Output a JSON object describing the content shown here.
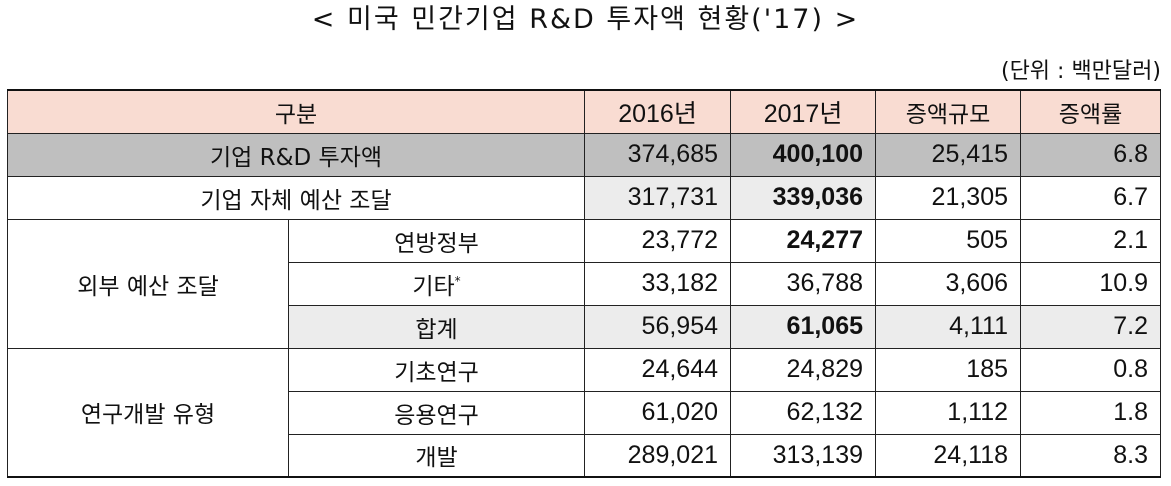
{
  "title": "< 미국 민간기업 R&D 투자액 현황('17) >",
  "unit": "(단위 : 백만달러)",
  "headers": [
    "구분",
    "2016년",
    "2017년",
    "증액규모",
    "증액률"
  ],
  "rows": {
    "total": {
      "label": "기업 R&D 투자액",
      "v2016": "374,685",
      "v2017": "400,100",
      "increase": "25,415",
      "rate": "6.8"
    },
    "self": {
      "label": "기업 자체 예산 조달",
      "v2016": "317,731",
      "v2017": "339,036",
      "increase": "21,305",
      "rate": "6.7"
    },
    "external": {
      "group": "외부 예산 조달",
      "federal": {
        "label": "연방정부",
        "v2016": "23,772",
        "v2017": "24,277",
        "increase": "505",
        "rate": "2.1"
      },
      "other": {
        "label": "기타",
        "mark": "*",
        "v2016": "33,182",
        "v2017": "36,788",
        "increase": "3,606",
        "rate": "10.9"
      },
      "sum": {
        "label": "합계",
        "v2016": "56,954",
        "v2017": "61,065",
        "increase": "4,111",
        "rate": "7.2"
      }
    },
    "type": {
      "group": "연구개발 유형",
      "basic": {
        "label": "기초연구",
        "v2016": "24,644",
        "v2017": "24,829",
        "increase": "185",
        "rate": "0.8"
      },
      "applied": {
        "label": "응용연구",
        "v2016": "61,020",
        "v2017": "62,132",
        "increase": "1,112",
        "rate": "1.8"
      },
      "development": {
        "label": "개발",
        "v2016": "289,021",
        "v2017": "313,139",
        "increase": "24,118",
        "rate": "8.3"
      }
    }
  },
  "colors": {
    "header": "#f9dcd2",
    "total_row": "#bfbfbf",
    "highlight": "#ececec"
  }
}
